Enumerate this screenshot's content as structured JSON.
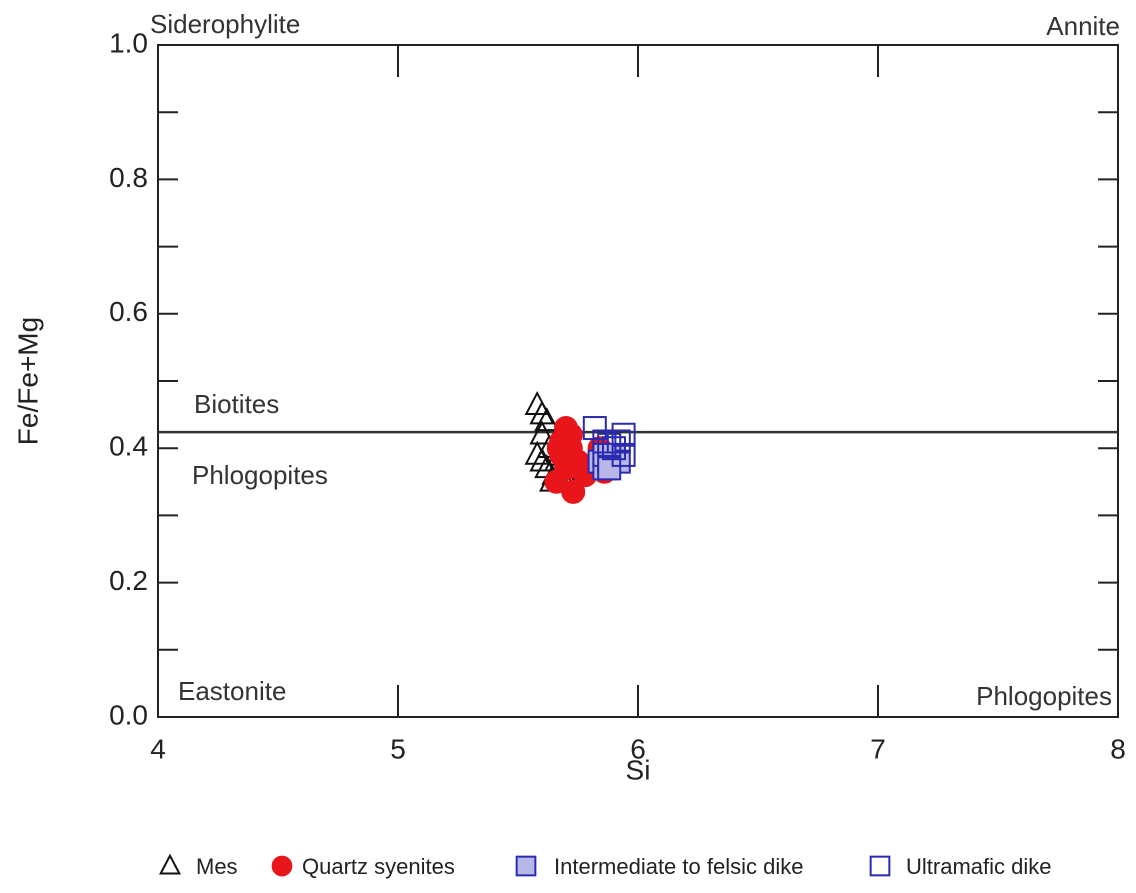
{
  "chart_data": {
    "type": "scatter",
    "xlabel": "Si",
    "ylabel": "Fe/Fe+Mg",
    "xlim": [
      4,
      8
    ],
    "ylim": [
      0,
      1
    ],
    "xticks": [
      4,
      5,
      6,
      7,
      8
    ],
    "yticks": [
      {
        "value": 0,
        "label": "0.0"
      },
      0.2,
      0.4,
      0.6,
      0.8,
      {
        "value": 1,
        "label": "1.0"
      }
    ],
    "yminor_ticks": [
      0.1,
      0.3,
      0.5,
      0.7,
      0.9
    ],
    "boundary_y": 0.424,
    "annotations": [
      "Siderophylite",
      "Annite",
      "Biotites",
      "Phlogopites",
      "Eastonite",
      "Phlogopites"
    ],
    "series": [
      {
        "name": "Mes",
        "marker": "triangle",
        "color": "#111111",
        "filled": false,
        "x": [
          5.58,
          5.6,
          5.62,
          5.58,
          5.6,
          5.62,
          5.65,
          5.68,
          5.7,
          5.72,
          5.66,
          5.63,
          5.6,
          5.64,
          5.7
        ],
        "y": [
          0.464,
          0.45,
          0.44,
          0.39,
          0.38,
          0.37,
          0.36,
          0.36,
          0.36,
          0.37,
          0.38,
          0.4,
          0.42,
          0.35,
          0.355
        ]
      },
      {
        "name": "Quartz syenites",
        "marker": "circle",
        "color": "#e8161b",
        "filled": true,
        "x": [
          5.68,
          5.7,
          5.72,
          5.68,
          5.7,
          5.72,
          5.66,
          5.73,
          5.75,
          5.78,
          5.82,
          5.86,
          5.84,
          5.7,
          5.67
        ],
        "y": [
          0.41,
          0.43,
          0.42,
          0.39,
          0.37,
          0.4,
          0.35,
          0.335,
          0.38,
          0.36,
          0.37,
          0.365,
          0.4,
          0.41,
          0.4
        ]
      },
      {
        "name": "Intermediate to felsic dike",
        "marker": "square",
        "color": "#2a2ab0",
        "filled": true,
        "fill": "#b8b8e8",
        "x": [
          5.84,
          5.86,
          5.88,
          5.9,
          5.92,
          5.86,
          5.88
        ],
        "y": [
          0.38,
          0.37,
          0.38,
          0.39,
          0.38,
          0.39,
          0.37
        ]
      },
      {
        "name": "Ultramafic dike",
        "marker": "square",
        "color": "#2a2ab0",
        "filled": false,
        "x": [
          5.82,
          5.94,
          5.9,
          5.92,
          5.86,
          5.94,
          5.88
        ],
        "y": [
          0.43,
          0.42,
          0.4,
          0.41,
          0.41,
          0.39,
          0.405
        ]
      }
    ]
  }
}
